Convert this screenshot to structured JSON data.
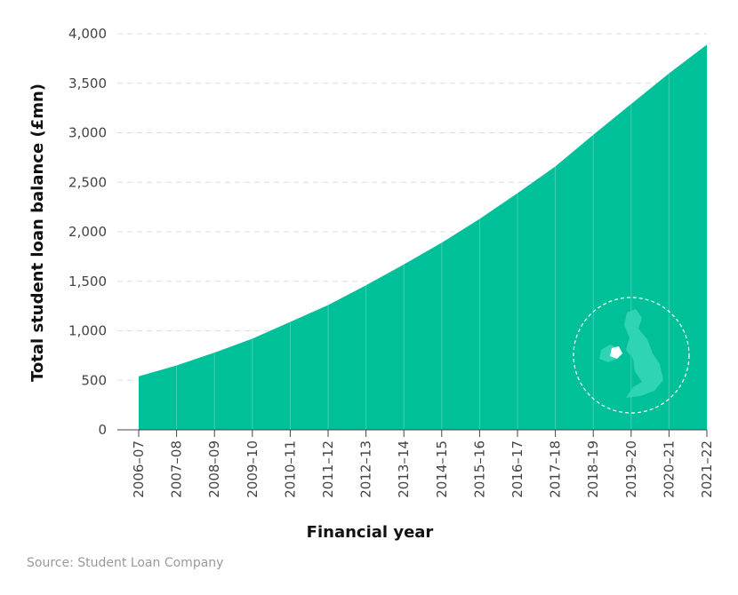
{
  "chart_data": {
    "type": "area",
    "categories": [
      "2006–07",
      "2007–08",
      "2008–09",
      "2009–10",
      "2010–11",
      "2011–12",
      "2012–13",
      "2013–14",
      "2014–15",
      "2015–16",
      "2016–17",
      "2017–18",
      "2018–19",
      "2019–20",
      "2020–21",
      "2021–22"
    ],
    "values": [
      540,
      650,
      780,
      920,
      1090,
      1260,
      1460,
      1670,
      1890,
      2130,
      2390,
      2660,
      2980,
      3290,
      3600,
      3890
    ],
    "color": "#00c09a",
    "ylim": [
      0,
      4000
    ],
    "yticks": [
      0,
      500,
      {
        "value": 1000,
        "label": "1,000"
      },
      {
        "value": 1500,
        "label": "1,500"
      },
      {
        "value": 2000,
        "label": "2,000"
      },
      {
        "value": 2500,
        "label": "2,500"
      },
      {
        "value": 3000,
        "label": "3,000"
      },
      {
        "value": 3500,
        "label": "3,500"
      },
      {
        "value": 4000,
        "label": "4,000"
      }
    ],
    "grid": true,
    "x_label": "Financial year",
    "y_label": "Total student loan balance (£mn)",
    "source": "Source: Student Loan Company"
  }
}
